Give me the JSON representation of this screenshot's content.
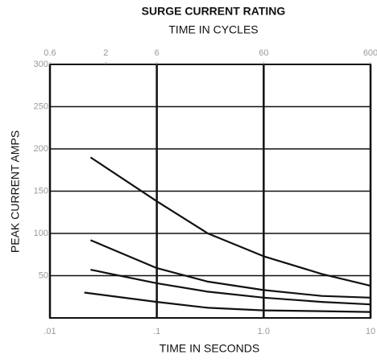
{
  "chart_data": {
    "type": "line",
    "title": "SURGE CURRENT RATING",
    "x2label": "TIME IN CYCLES",
    "xlabel": "TIME IN SECONDS",
    "ylabel": "PEAK CURRENT AMPS",
    "xscale": "log",
    "xlim": [
      0.01,
      10
    ],
    "xticks": [
      {
        "value": 0.01,
        "label": ".01"
      },
      {
        "value": 0.1,
        "label": ".1"
      },
      {
        "value": 1,
        "label": "1.0"
      },
      10
    ],
    "x2lim": [
      0.6,
      600
    ],
    "x2ticks": [
      0.6,
      2,
      6,
      60,
      600
    ],
    "ylim": [
      0,
      300
    ],
    "yticks": [
      50,
      100,
      150,
      200,
      250,
      300
    ],
    "grid": true,
    "series": [
      {
        "color": "#111111",
        "x": [
          0.024,
          0.1,
          0.3,
          1,
          3.5,
          10
        ],
        "values": [
          190,
          138,
          100,
          73,
          52,
          38
        ]
      },
      {
        "color": "#111111",
        "x": [
          0.024,
          0.1,
          0.3,
          1,
          3.5,
          10
        ],
        "values": [
          92,
          59,
          43,
          33,
          26,
          24
        ]
      },
      {
        "color": "#111111",
        "x": [
          0.024,
          0.1,
          0.3,
          1,
          3.5,
          10
        ],
        "values": [
          57,
          41,
          31,
          24,
          19,
          16
        ]
      },
      {
        "color": "#111111",
        "x": [
          0.021,
          0.1,
          0.3,
          1,
          3.5,
          10
        ],
        "values": [
          30,
          19,
          12,
          9,
          8,
          7
        ]
      }
    ]
  }
}
